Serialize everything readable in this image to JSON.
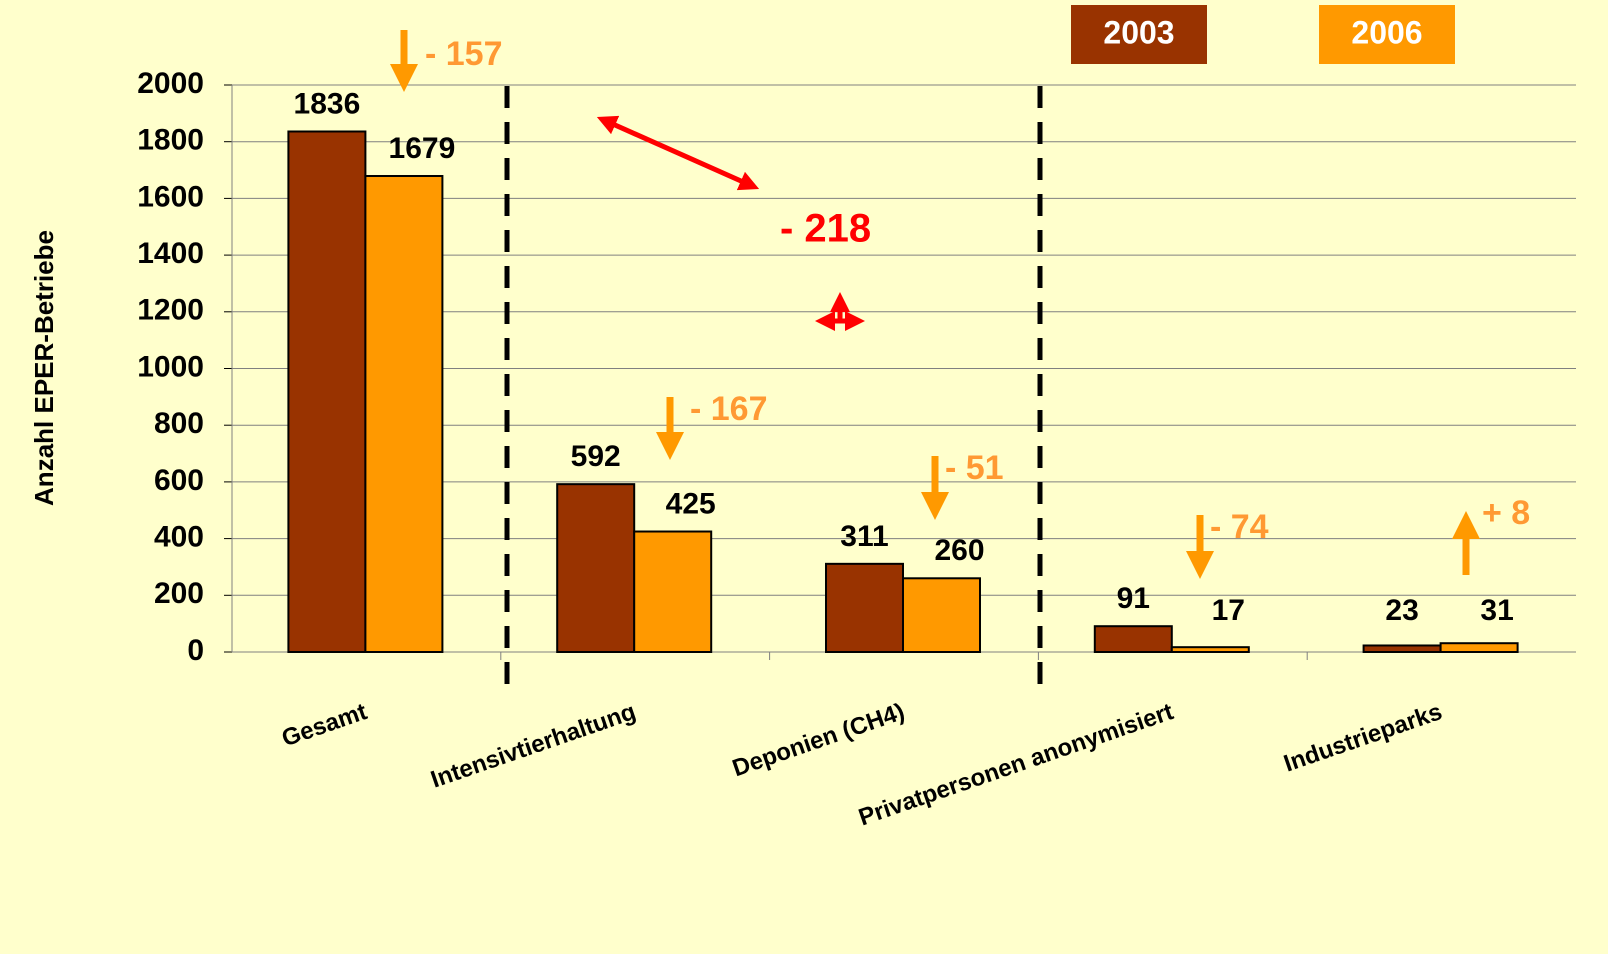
{
  "chart_data": {
    "type": "bar",
    "y_label": "Anzahl EPER-Betriebe",
    "categories": [
      "Gesamt",
      "Intensivtierhaltung",
      "Deponien (CH4)",
      "Privatpersonen anonymisiert",
      "Industrieparks"
    ],
    "series": [
      {
        "name": "2003",
        "color": "#993300",
        "values": [
          1836,
          592,
          311,
          91,
          23
        ]
      },
      {
        "name": "2006",
        "color": "#ff9900",
        "values": [
          1679,
          425,
          260,
          17,
          31
        ]
      }
    ],
    "ylim": [
      0,
      2000
    ],
    "yticks": [
      0,
      200,
      400,
      600,
      800,
      1000,
      1200,
      1400,
      1600,
      1800,
      2000
    ],
    "grid": true,
    "annotations": [
      {
        "text": "- 157",
        "color": "#ff9933"
      },
      {
        "text": "- 218",
        "color": "#ff0000"
      },
      {
        "text": "- 167",
        "color": "#ff9933"
      },
      {
        "text": "- 51",
        "color": "#ff9933"
      },
      {
        "text": "- 74",
        "color": "#ff9933"
      },
      {
        "text": "+ 8",
        "color": "#ff9933"
      }
    ]
  }
}
